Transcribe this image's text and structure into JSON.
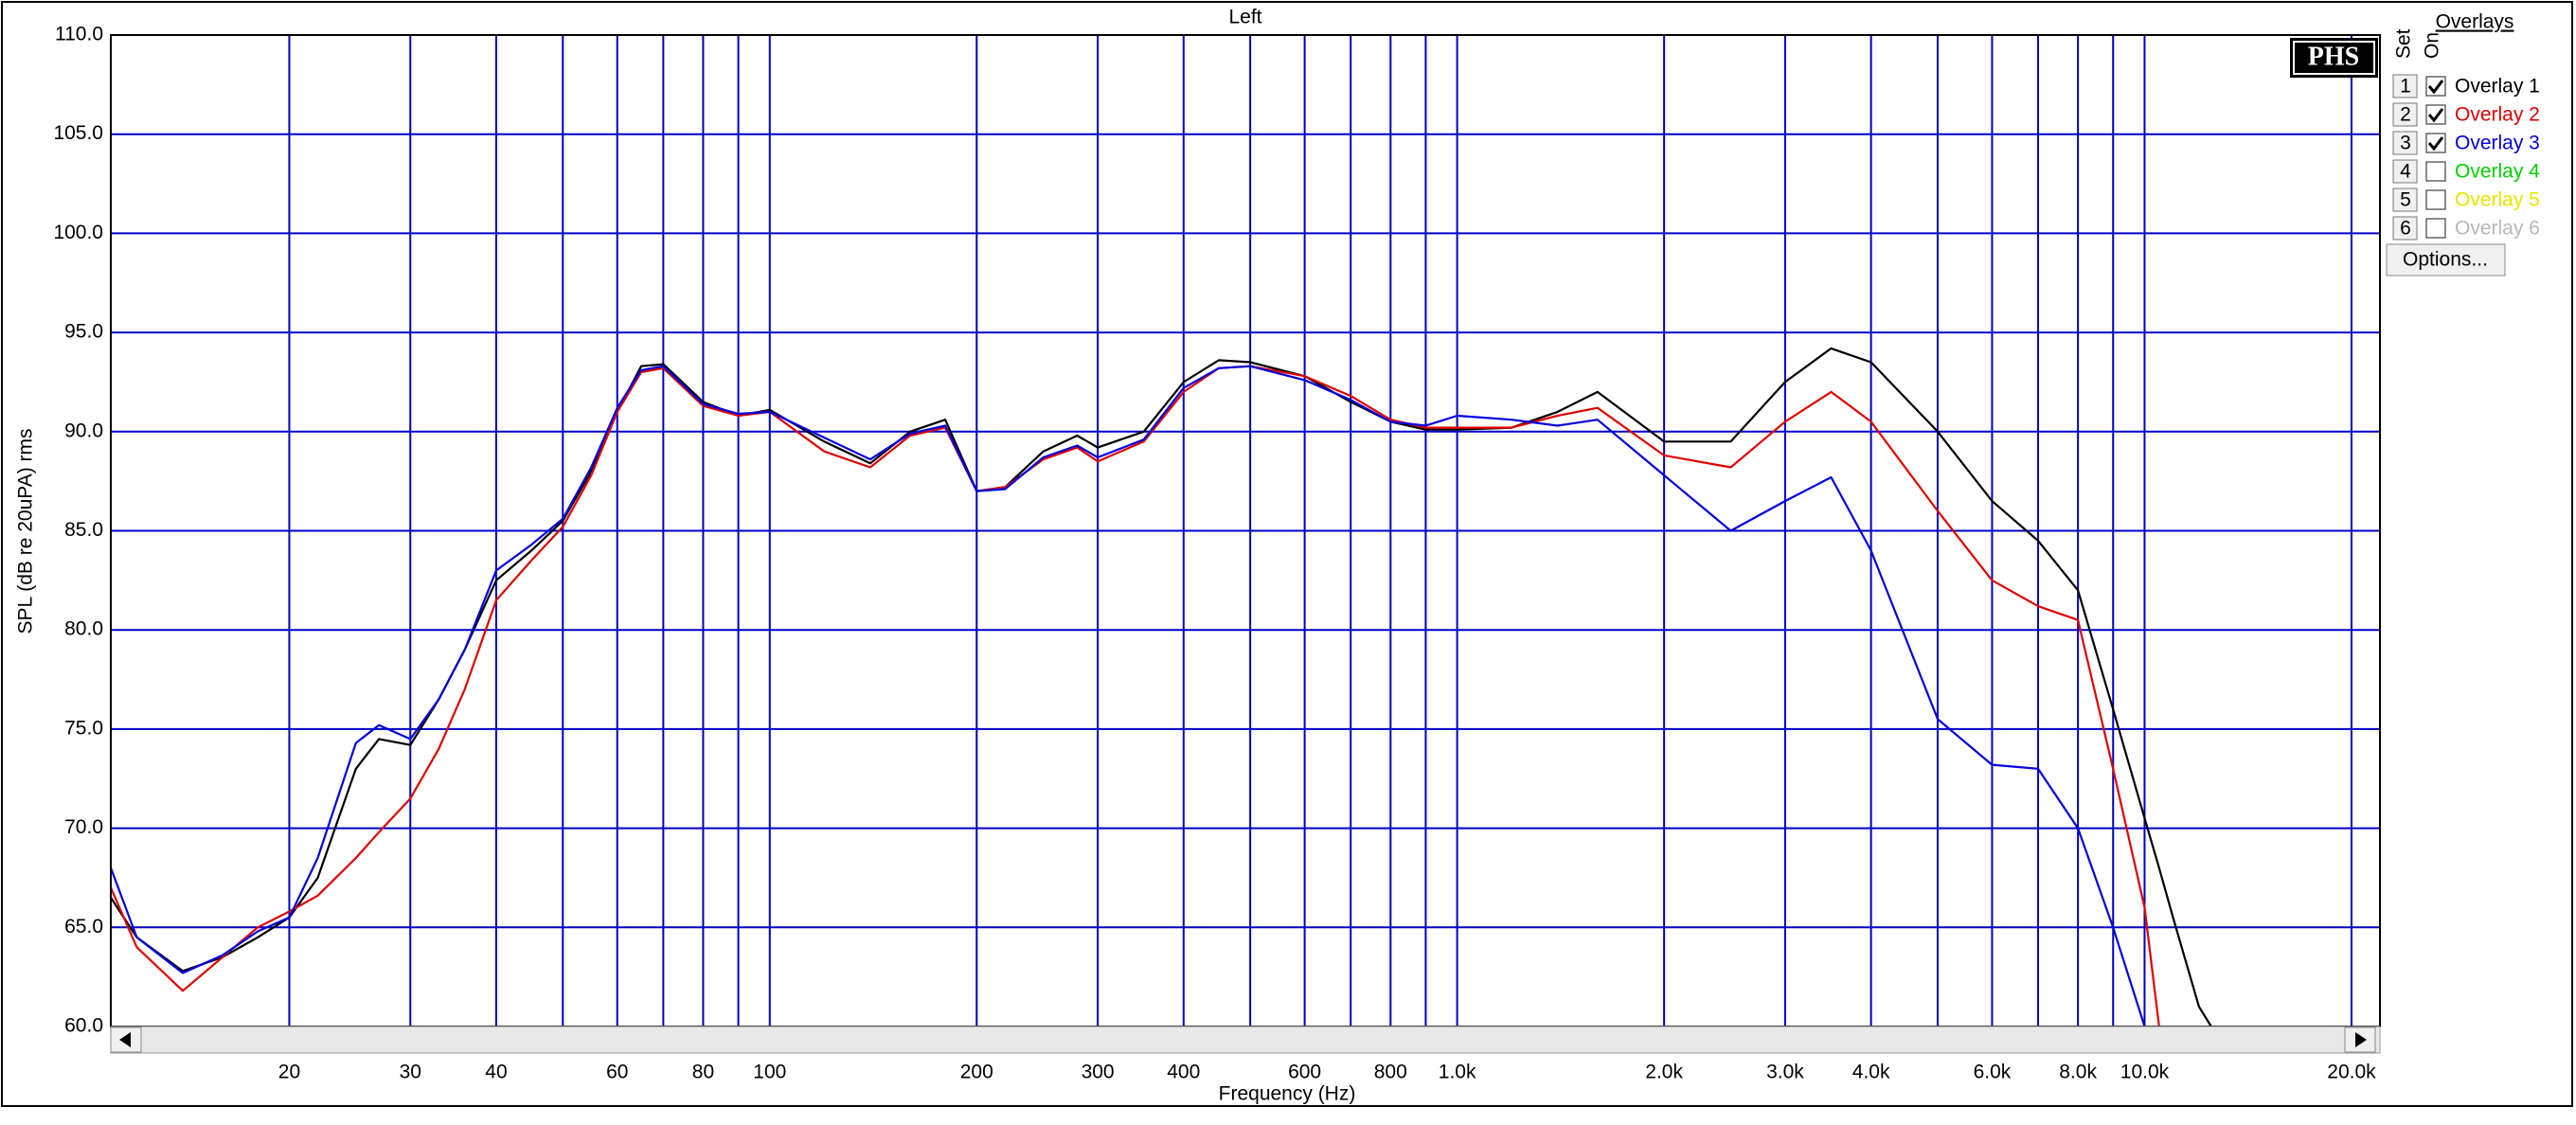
{
  "chart_data": {
    "type": "line",
    "title": "Left",
    "x_label": "Frequency (Hz)",
    "y_label": "SPL (dB re 20uPA) rms",
    "x_scale": "log",
    "grid": true,
    "grid_color": "#0000c8",
    "xlim": [
      11,
      22000
    ],
    "ylim": [
      60,
      110
    ],
    "xticks": [
      20,
      30,
      40,
      {
        "value": 50,
        "label": null
      },
      60,
      {
        "value": 70,
        "label": null
      },
      80,
      {
        "value": 90,
        "label": null
      },
      100,
      200,
      300,
      400,
      {
        "value": 500,
        "label": null
      },
      600,
      {
        "value": 700,
        "label": null
      },
      800,
      {
        "value": 900,
        "label": null
      },
      {
        "value": 1000,
        "label": "1.0k"
      },
      {
        "value": 2000,
        "label": "2.0k"
      },
      {
        "value": 3000,
        "label": "3.0k"
      },
      {
        "value": 4000,
        "label": "4.0k"
      },
      {
        "value": 5000,
        "label": null
      },
      {
        "value": 6000,
        "label": "6.0k"
      },
      {
        "value": 7000,
        "label": null
      },
      {
        "value": 8000,
        "label": "8.0k"
      },
      {
        "value": 9000,
        "label": null
      },
      {
        "value": 10000,
        "label": "10.0k"
      },
      {
        "value": 20000,
        "label": "20.0k"
      }
    ],
    "yticks": [
      {
        "value": 60,
        "label": "60.0"
      },
      {
        "value": 65,
        "label": "65.0"
      },
      {
        "value": 70,
        "label": "70.0"
      },
      {
        "value": 75,
        "label": "75.0"
      },
      {
        "value": 80,
        "label": "80.0"
      },
      {
        "value": 85,
        "label": "85.0"
      },
      {
        "value": 90,
        "label": "90.0"
      },
      {
        "value": 95,
        "label": "95.0"
      },
      {
        "value": 100,
        "label": "100.0"
      },
      {
        "value": 105,
        "label": "105.0"
      },
      {
        "value": 110,
        "label": "110.0"
      }
    ],
    "x": [
      11,
      12,
      14,
      16,
      18,
      20,
      22,
      25,
      27,
      30,
      33,
      36,
      40,
      45,
      50,
      55,
      60,
      65,
      70,
      80,
      90,
      100,
      120,
      140,
      160,
      180,
      200,
      220,
      250,
      280,
      300,
      350,
      400,
      450,
      500,
      600,
      700,
      800,
      900,
      1000,
      1200,
      1400,
      1600,
      2000,
      2500,
      3000,
      3500,
      4000,
      5000,
      6000,
      7000,
      8000,
      9000,
      10000,
      10500,
      11000,
      12000,
      12500
    ],
    "series": [
      {
        "name": "Overlay 1",
        "color": "#000000",
        "checked": true,
        "values": [
          66.5,
          64.5,
          62.8,
          63.5,
          64.5,
          65.5,
          67.5,
          73,
          74.5,
          74.2,
          76.5,
          79,
          82.5,
          84,
          85.5,
          88,
          91,
          93.3,
          93.4,
          91.5,
          90.8,
          91.1,
          89.5,
          88.4,
          90,
          90.6,
          87,
          87.2,
          89,
          89.8,
          89.2,
          90,
          92.5,
          93.6,
          93.5,
          92.8,
          91.5,
          90.5,
          90.1,
          90.1,
          90.2,
          91,
          92,
          89.5,
          89.5,
          92.5,
          94.2,
          93.5,
          90,
          86.5,
          84.5,
          82,
          76,
          70.5,
          68,
          65.5,
          61,
          60
        ]
      },
      {
        "name": "Overlay 2",
        "color": "#e00000",
        "checked": true,
        "values": [
          67,
          64,
          61.8,
          63.5,
          65,
          65.8,
          66.6,
          68.5,
          69.8,
          71.5,
          74,
          77,
          81.5,
          83.5,
          85.2,
          87.8,
          91,
          93,
          93.2,
          91.3,
          90.8,
          91,
          89,
          88.2,
          89.8,
          90.2,
          87,
          87.2,
          88.6,
          89.2,
          88.5,
          89.5,
          92,
          93.2,
          93.3,
          92.8,
          91.8,
          90.6,
          90.2,
          90.2,
          90.2,
          90.8,
          91.2,
          88.8,
          88.2,
          90.5,
          92,
          90.5,
          86,
          82.5,
          81.2,
          80.5,
          73,
          66,
          60,
          null,
          null,
          null
        ]
      },
      {
        "name": "Overlay 3",
        "color": "#0000e0",
        "checked": true,
        "values": [
          68,
          64.5,
          62.7,
          63.6,
          64.8,
          65.5,
          68.5,
          74.3,
          75.2,
          74.5,
          76.5,
          79,
          83,
          84.3,
          85.6,
          88.2,
          91.2,
          93.1,
          93.3,
          91.4,
          90.9,
          91,
          89.7,
          88.6,
          89.9,
          90.3,
          87,
          87.1,
          88.7,
          89.3,
          88.7,
          89.6,
          92.2,
          93.2,
          93.3,
          92.6,
          91.6,
          90.5,
          90.3,
          90.8,
          90.6,
          90.3,
          90.6,
          87.8,
          85,
          86.5,
          87.7,
          84,
          75.5,
          73.2,
          73,
          70,
          65,
          60,
          null,
          null,
          null,
          null
        ]
      }
    ],
    "badge": "PHS",
    "overlay_panel": {
      "title": "Overlays",
      "set_label": "Set",
      "on_label": "On",
      "set_numbers": [
        1,
        2,
        3,
        4,
        5,
        6
      ],
      "extra_overlays": [
        {
          "name": "Overlay 4",
          "color": "#00d000",
          "checked": false
        },
        {
          "name": "Overlay 5",
          "color": "#e6e600",
          "checked": false
        },
        {
          "name": "Overlay 6",
          "color": "#b8b8b8",
          "checked": false
        }
      ],
      "options_button": "Options..."
    }
  }
}
